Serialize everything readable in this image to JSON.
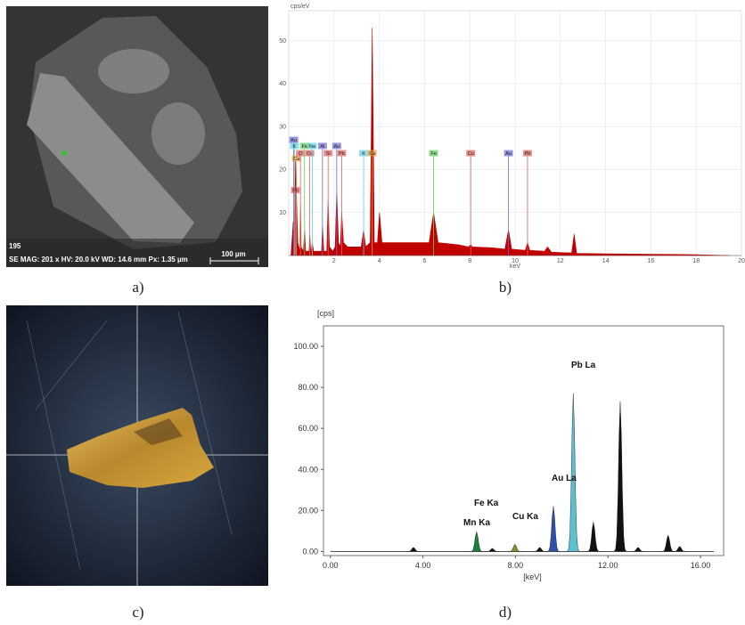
{
  "figure": {
    "panel_labels": [
      "a)",
      "b)",
      "c)",
      "d)"
    ]
  },
  "sem_image": {
    "frame_number": "195",
    "info": "SE  MAG: 201 x  HV: 20.0 kV  WD: 14.6 mm  Px: 1.35 µm",
    "scale_bar": "100 µm"
  },
  "chart_data": [
    {
      "type": "area",
      "y_label": "cps/eV",
      "x_label": "keV",
      "color": "#c00000",
      "grid": true,
      "xlim": [
        0,
        20
      ],
      "ylim": [
        0,
        57
      ],
      "xticks": [
        2,
        4,
        6,
        8,
        10,
        12,
        14,
        16,
        18,
        20
      ],
      "yticks": [
        10,
        20,
        30,
        40,
        50
      ],
      "x": [
        0.1,
        0.2,
        0.25,
        0.3,
        0.4,
        0.5,
        0.52,
        0.55,
        0.65,
        0.7,
        0.75,
        0.9,
        0.93,
        0.97,
        1.0,
        1.04,
        1.1,
        1.3,
        1.45,
        1.49,
        1.55,
        1.68,
        1.74,
        1.8,
        1.95,
        2.05,
        2.12,
        2.2,
        2.28,
        2.34,
        2.42,
        2.6,
        3.2,
        3.31,
        3.4,
        3.6,
        3.69,
        3.78,
        3.92,
        4.01,
        4.12,
        4.5,
        5.5,
        6.2,
        6.4,
        6.6,
        7.5,
        7.95,
        8.04,
        8.12,
        9.0,
        9.55,
        9.71,
        9.85,
        10.45,
        10.55,
        10.65,
        11.3,
        11.44,
        11.6,
        12.5,
        12.61,
        12.72,
        14,
        16,
        18,
        19.5
      ],
      "values": [
        0,
        8,
        2,
        22,
        3,
        1,
        12,
        2,
        1,
        6,
        1,
        1,
        5,
        1,
        1,
        3,
        1,
        1,
        1,
        7,
        1,
        1,
        13,
        2,
        1,
        2,
        15,
        3,
        2,
        10,
        3,
        2,
        2,
        6,
        2,
        3,
        53,
        3,
        3,
        10,
        3,
        3,
        3,
        3,
        10,
        3,
        2.5,
        2,
        2.5,
        2,
        1.8,
        1.5,
        6,
        1.5,
        1.2,
        3,
        1.2,
        1,
        2,
        0.8,
        0.6,
        5,
        0.5,
        0.4,
        0.3,
        0.2,
        0
      ],
      "markers": [
        {
          "label": "Au",
          "x": 0.22,
          "y": 26.2,
          "color": "#6b6bd6"
        },
        {
          "label": "K",
          "x": 0.25,
          "y": 24.8,
          "color": "#5fd0e0"
        },
        {
          "label": "Ca",
          "x": 0.34,
          "y": 21.9,
          "color": "#e8a040"
        },
        {
          "label": "Pb",
          "x": 0.3,
          "y": 14.5,
          "color": "#e06060"
        },
        {
          "label": "O",
          "x": 0.52,
          "y": 23.1,
          "color": "#e06060"
        },
        {
          "label": "Fe",
          "x": 0.7,
          "y": 24.8,
          "color": "#60d060"
        },
        {
          "label": "Cu",
          "x": 0.93,
          "y": 23.1,
          "color": "#e06060"
        },
        {
          "label": "Na",
          "x": 1.04,
          "y": 24.8,
          "color": "#5fd0e0"
        },
        {
          "label": "Al",
          "x": 1.49,
          "y": 24.8,
          "color": "#6b6bd6"
        },
        {
          "label": "Si",
          "x": 1.74,
          "y": 23.1,
          "color": "#e06060"
        },
        {
          "label": "Au",
          "x": 2.12,
          "y": 24.8,
          "color": "#6b6bd6"
        },
        {
          "label": "Pb",
          "x": 2.34,
          "y": 23.1,
          "color": "#e06060"
        },
        {
          "label": "K",
          "x": 3.31,
          "y": 23.1,
          "color": "#5fd0e0"
        },
        {
          "label": "Ca",
          "x": 3.69,
          "y": 23.1,
          "color": "#e8a040"
        },
        {
          "label": "Fe",
          "x": 6.4,
          "y": 23.1,
          "color": "#60d060"
        },
        {
          "label": "Cu",
          "x": 8.04,
          "y": 23.1,
          "color": "#e06060"
        },
        {
          "label": "Au",
          "x": 9.71,
          "y": 23.1,
          "color": "#6b6bd6"
        },
        {
          "label": "Pb",
          "x": 10.55,
          "y": 23.1,
          "color": "#e06060"
        }
      ]
    },
    {
      "type": "spectrum",
      "y_label": "[cps]",
      "x_label": "[keV]",
      "xlim": [
        -0.3,
        17
      ],
      "ylim": [
        -2,
        110
      ],
      "xticks": [
        {
          "value": 0,
          "label": "0.00"
        },
        {
          "value": 4,
          "label": "4.00"
        },
        {
          "value": 8,
          "label": "8.00"
        },
        {
          "value": 12,
          "label": "12.00"
        },
        {
          "value": 16,
          "label": "16.00"
        }
      ],
      "yticks": [
        {
          "value": 0,
          "label": "0.00"
        },
        {
          "value": 20,
          "label": "20.00"
        },
        {
          "value": 40,
          "label": "40.00"
        },
        {
          "value": 60,
          "label": "60.00"
        },
        {
          "value": 80,
          "label": "80.00"
        },
        {
          "value": 100,
          "label": "100.00"
        }
      ],
      "x": [
        3.59,
        6.32,
        7.0,
        7.98,
        9.05,
        9.64,
        10.5,
        11.37,
        12.53,
        13.3,
        14.6,
        15.1
      ],
      "values": [
        2,
        9.6,
        1.5,
        3.5,
        2,
        22,
        77,
        14.4,
        73,
        2,
        8,
        2.5
      ],
      "colors": [
        "#111",
        "#1a8040",
        "#111",
        "#8a8a30",
        "#111",
        "#2f4fa8",
        "#5bc0d0",
        "#111",
        "#111",
        "#111",
        "#111",
        "#111"
      ],
      "annotations": [
        "Pb La",
        "Fe Ka",
        "Mn Ka",
        "Cu Ka",
        "Au La"
      ]
    }
  ]
}
